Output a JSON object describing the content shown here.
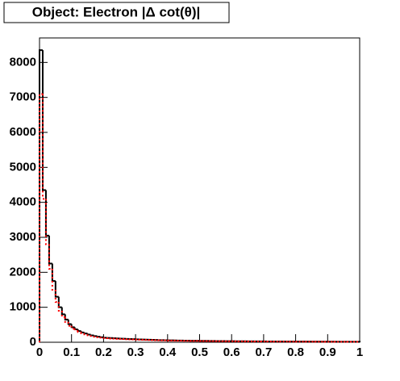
{
  "chart_data": {
    "type": "histogram",
    "title": "Object: Electron |Δ cot(θ)|",
    "bins": [
      0,
      0.01,
      0.02,
      0.03,
      0.04,
      0.05,
      0.06,
      0.07,
      0.08,
      0.09,
      0.1,
      0.11,
      0.12,
      0.13,
      0.14,
      0.15,
      0.16,
      0.17,
      0.18,
      0.19,
      0.2,
      0.21,
      0.22,
      0.23,
      0.24,
      0.25,
      0.26,
      0.27,
      0.28,
      0.29,
      0.3,
      0.31,
      0.32,
      0.33,
      0.34,
      0.35,
      0.36,
      0.37,
      0.38,
      0.39,
      0.4,
      0.41,
      0.42,
      0.43,
      0.44,
      0.45,
      0.46,
      0.47,
      0.48,
      0.49,
      0.5,
      0.51,
      0.52,
      0.53,
      0.54,
      0.55,
      0.56,
      0.57,
      0.58,
      0.59,
      0.6,
      0.61,
      0.62,
      0.63,
      0.64,
      0.65,
      0.66,
      0.67,
      0.68,
      0.69,
      0.7,
      0.71,
      0.72,
      0.73,
      0.74,
      0.75,
      0.76,
      0.77,
      0.78,
      0.79,
      0.8,
      0.81,
      0.82,
      0.83,
      0.84,
      0.85,
      0.86,
      0.87,
      0.88,
      0.89,
      0.9,
      0.91,
      0.92,
      0.93,
      0.94,
      0.95,
      0.96,
      0.97,
      0.98,
      0.99,
      1
    ],
    "series": [
      {
        "color": "#000000",
        "style": "solid",
        "values": [
          8350,
          4350,
          3050,
          2250,
          1750,
          1300,
          1000,
          800,
          650,
          520,
          430,
          370,
          320,
          280,
          250,
          220,
          195,
          175,
          160,
          145,
          130,
          125,
          120,
          115,
          110,
          105,
          100,
          96,
          92,
          88,
          84,
          80,
          77,
          74,
          71,
          68,
          65,
          62,
          60,
          58,
          56,
          54,
          52,
          50,
          48,
          46,
          45,
          44,
          43,
          42,
          41,
          40,
          39,
          38,
          37,
          36,
          35,
          34,
          33,
          32,
          31,
          30,
          29,
          28,
          28,
          27,
          27,
          26,
          26,
          25,
          25,
          24,
          24,
          23,
          23,
          22,
          22,
          21,
          21,
          20,
          20,
          20,
          19,
          19,
          19,
          18,
          18,
          18,
          17,
          17,
          17,
          16,
          16,
          16,
          15,
          15,
          15,
          15,
          14,
          14
        ]
      },
      {
        "color": "#ff0000",
        "style": "dotted",
        "values": [
          7100,
          4100,
          2800,
          2100,
          1500,
          1150,
          900,
          720,
          580,
          470,
          390,
          330,
          290,
          255,
          225,
          200,
          180,
          160,
          145,
          132,
          120,
          114,
          108,
          103,
          99,
          95,
          91,
          87,
          83,
          80,
          77,
          74,
          71,
          68,
          65,
          63,
          60,
          58,
          56,
          54,
          52,
          50,
          48,
          46,
          45,
          43,
          42,
          41,
          40,
          39,
          38,
          37,
          36,
          35,
          34,
          33,
          32,
          31,
          30,
          29,
          29,
          28,
          27,
          27,
          26,
          25,
          25,
          24,
          24,
          23,
          23,
          22,
          22,
          21,
          21,
          20,
          20,
          20,
          19,
          19,
          18,
          18,
          18,
          17,
          17,
          17,
          16,
          16,
          16,
          15,
          15,
          15,
          14,
          14,
          14,
          14,
          13,
          13,
          13,
          13
        ]
      }
    ],
    "xlim": [
      0,
      1
    ],
    "xticks": [
      0,
      0.1,
      0.2,
      0.3,
      0.4,
      0.5,
      0.6,
      0.7,
      0.8,
      0.9,
      1
    ],
    "ylim": [
      0,
      8700
    ],
    "yticks": [
      0,
      1000,
      2000,
      3000,
      4000,
      5000,
      6000,
      7000,
      8000
    ]
  }
}
